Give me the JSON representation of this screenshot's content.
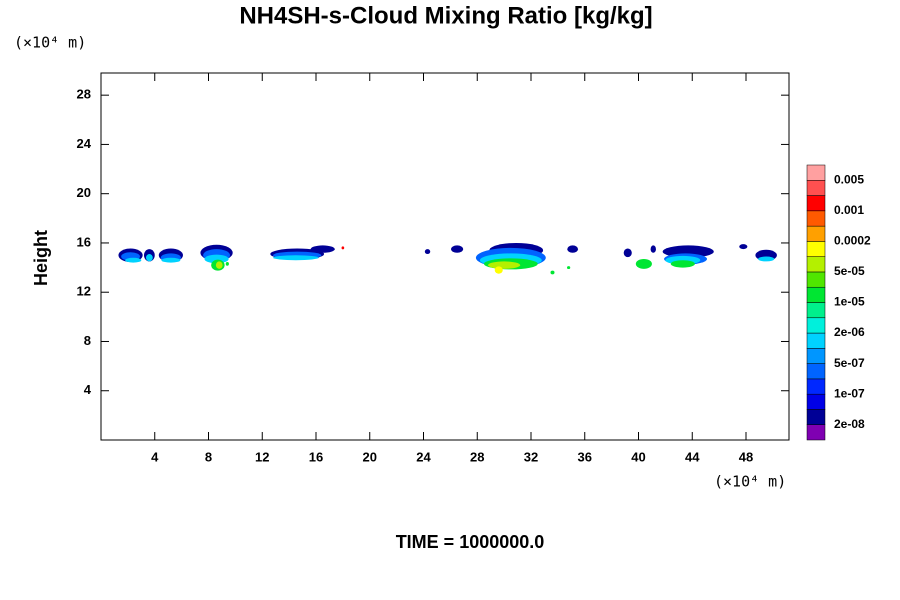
{
  "chart_data": {
    "type": "contour",
    "title": "NH4SH-s-Cloud Mixing Ratio [kg/kg]",
    "y_label": "Height",
    "y_unit": "(×10⁴ m)",
    "x_unit": "(×10⁴ m)",
    "footer": "TIME = 1000000.0",
    "xlim": [
      0,
      51.2
    ],
    "ylim": [
      0,
      29.8
    ],
    "xticks": [
      4,
      8,
      12,
      16,
      20,
      24,
      28,
      32,
      36,
      40,
      44,
      48
    ],
    "yticks": [
      4,
      8,
      12,
      16,
      20,
      24,
      28
    ],
    "colorbar": {
      "labels": [
        "2e-08",
        "1e-07",
        "5e-07",
        "2e-06",
        "1e-05",
        "5e-05",
        "0.0002",
        "0.001",
        "0.005"
      ],
      "colors": [
        "#7f00b2",
        "#000096",
        "#0000e6",
        "#0028ff",
        "#0064ff",
        "#0096ff",
        "#00d2ff",
        "#00f0dc",
        "#00f08c",
        "#00e632",
        "#50e600",
        "#b4f000",
        "#ffff00",
        "#ffa000",
        "#ff5a00",
        "#ff0000",
        "#ff5050",
        "#ffa0a0"
      ]
    },
    "cells": [
      {
        "x": 2.2,
        "y": 15.0,
        "rx": 0.9,
        "ry": 0.55,
        "color": "#000096"
      },
      {
        "x": 2.2,
        "y": 14.9,
        "rx": 0.7,
        "ry": 0.35,
        "color": "#0064ff"
      },
      {
        "x": 2.4,
        "y": 14.6,
        "rx": 0.6,
        "ry": 0.2,
        "color": "#00d2ff"
      },
      {
        "x": 3.6,
        "y": 15.0,
        "rx": 0.4,
        "ry": 0.5,
        "color": "#000096"
      },
      {
        "x": 3.6,
        "y": 14.8,
        "rx": 0.25,
        "ry": 0.3,
        "color": "#00d2ff"
      },
      {
        "x": 5.2,
        "y": 15.0,
        "rx": 0.9,
        "ry": 0.55,
        "color": "#000096"
      },
      {
        "x": 5.2,
        "y": 14.8,
        "rx": 0.75,
        "ry": 0.35,
        "color": "#0064ff"
      },
      {
        "x": 5.2,
        "y": 14.6,
        "rx": 0.7,
        "ry": 0.2,
        "color": "#00d2ff"
      },
      {
        "x": 8.6,
        "y": 15.2,
        "rx": 1.2,
        "ry": 0.65,
        "color": "#000096"
      },
      {
        "x": 8.6,
        "y": 15.0,
        "rx": 1.0,
        "ry": 0.5,
        "color": "#0064ff"
      },
      {
        "x": 8.6,
        "y": 14.7,
        "rx": 0.9,
        "ry": 0.35,
        "color": "#00d2ff"
      },
      {
        "x": 8.7,
        "y": 14.2,
        "rx": 0.5,
        "ry": 0.45,
        "color": "#00e632"
      },
      {
        "x": 8.8,
        "y": 14.2,
        "rx": 0.25,
        "ry": 0.3,
        "color": "#b4f000"
      },
      {
        "x": 9.4,
        "y": 14.3,
        "rx": 0.12,
        "ry": 0.15,
        "color": "#00e632"
      },
      {
        "x": 14.6,
        "y": 15.1,
        "rx": 2.0,
        "ry": 0.45,
        "color": "#000096"
      },
      {
        "x": 16.5,
        "y": 15.5,
        "rx": 0.9,
        "ry": 0.3,
        "color": "#000096"
      },
      {
        "x": 14.6,
        "y": 15.0,
        "rx": 1.8,
        "ry": 0.3,
        "color": "#0064ff"
      },
      {
        "x": 14.5,
        "y": 14.8,
        "rx": 1.7,
        "ry": 0.2,
        "color": "#00d2ff"
      },
      {
        "x": 18.0,
        "y": 15.6,
        "rx": 0.1,
        "ry": 0.12,
        "color": "#ff0000"
      },
      {
        "x": 24.3,
        "y": 15.3,
        "rx": 0.2,
        "ry": 0.2,
        "color": "#000096"
      },
      {
        "x": 26.5,
        "y": 15.5,
        "rx": 0.45,
        "ry": 0.3,
        "color": "#000096"
      },
      {
        "x": 30.9,
        "y": 15.4,
        "rx": 2.0,
        "ry": 0.6,
        "color": "#000096"
      },
      {
        "x": 30.5,
        "y": 14.8,
        "rx": 2.6,
        "ry": 0.8,
        "color": "#0064ff"
      },
      {
        "x": 30.5,
        "y": 14.6,
        "rx": 2.3,
        "ry": 0.55,
        "color": "#00d2ff"
      },
      {
        "x": 30.5,
        "y": 14.3,
        "rx": 2.0,
        "ry": 0.45,
        "color": "#00e632"
      },
      {
        "x": 30.0,
        "y": 14.2,
        "rx": 1.2,
        "ry": 0.3,
        "color": "#b4f000"
      },
      {
        "x": 29.6,
        "y": 13.8,
        "rx": 0.3,
        "ry": 0.3,
        "color": "#ffff00"
      },
      {
        "x": 33.6,
        "y": 13.6,
        "rx": 0.15,
        "ry": 0.15,
        "color": "#00e632"
      },
      {
        "x": 35.1,
        "y": 15.5,
        "rx": 0.4,
        "ry": 0.3,
        "color": "#000096"
      },
      {
        "x": 34.8,
        "y": 14.0,
        "rx": 0.12,
        "ry": 0.12,
        "color": "#00e632"
      },
      {
        "x": 39.2,
        "y": 15.2,
        "rx": 0.3,
        "ry": 0.35,
        "color": "#000096"
      },
      {
        "x": 40.4,
        "y": 14.3,
        "rx": 0.6,
        "ry": 0.4,
        "color": "#00e632"
      },
      {
        "x": 41.1,
        "y": 15.5,
        "rx": 0.2,
        "ry": 0.3,
        "color": "#000096"
      },
      {
        "x": 43.7,
        "y": 15.3,
        "rx": 1.9,
        "ry": 0.5,
        "color": "#000096"
      },
      {
        "x": 43.5,
        "y": 14.7,
        "rx": 1.6,
        "ry": 0.45,
        "color": "#0064ff"
      },
      {
        "x": 43.3,
        "y": 14.6,
        "rx": 1.3,
        "ry": 0.35,
        "color": "#00d2ff"
      },
      {
        "x": 43.3,
        "y": 14.3,
        "rx": 0.9,
        "ry": 0.3,
        "color": "#00e632"
      },
      {
        "x": 47.8,
        "y": 15.7,
        "rx": 0.3,
        "ry": 0.2,
        "color": "#000096"
      },
      {
        "x": 49.5,
        "y": 15.0,
        "rx": 0.8,
        "ry": 0.45,
        "color": "#000096"
      },
      {
        "x": 49.5,
        "y": 14.7,
        "rx": 0.6,
        "ry": 0.2,
        "color": "#00d2ff"
      }
    ]
  }
}
